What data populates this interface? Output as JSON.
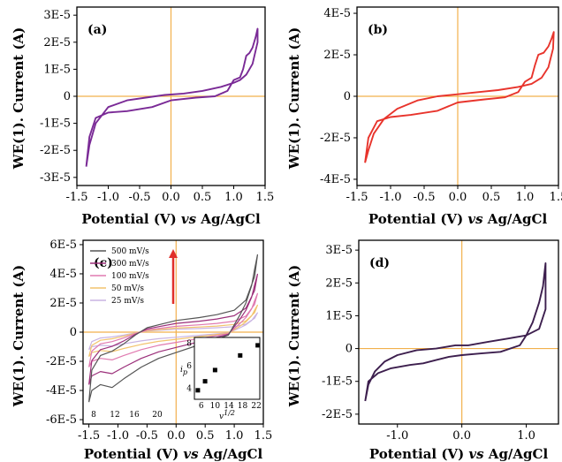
{
  "chart_data": [
    {
      "panel": "(a)",
      "type": "line",
      "xlabel": "Potential (V) vs Ag/AgCl",
      "ylabel": "WE(1). Current (A)",
      "xlim": [
        -1.5,
        1.5
      ],
      "ylim": [
        -3.3e-05,
        3.3e-05
      ],
      "xticks": [
        "-1.5",
        "-1.0",
        "-0.5",
        "0.0",
        "0.5",
        "1.0",
        "1.5"
      ],
      "yticks": [
        "-3E-5",
        "-2E-5",
        "-1E-5",
        "0",
        "1E-5",
        "2E-5",
        "3E-5"
      ],
      "color": "#7a2a96",
      "series": [
        {
          "x": [
            -1.35,
            -1.3,
            -1.2,
            -1.0,
            -0.7,
            -0.3,
            0.0,
            0.4,
            0.7,
            0.9,
            1.0,
            1.1,
            1.15,
            1.2,
            1.25,
            1.3,
            1.35,
            1.38,
            1.38,
            1.3,
            1.2,
            1.1,
            1.0,
            0.8,
            0.5,
            0.2,
            -0.1,
            -0.4,
            -0.7,
            -1.0,
            -1.2,
            -1.3,
            -1.35
          ],
          "y": [
            -2.6e-05,
            -1.5e-05,
            -8e-06,
            -6e-06,
            -5.5e-06,
            -4e-06,
            -1.5e-06,
            -5e-07,
            0.0,
            2e-06,
            6e-06,
            7e-06,
            1e-05,
            1.5e-05,
            1.6e-05,
            1.8e-05,
            2.2e-05,
            2.5e-05,
            2e-05,
            1.2e-05,
            8e-06,
            6e-06,
            5e-06,
            3.5e-06,
            2e-06,
            1e-06,
            5e-07,
            -5e-07,
            -1.5e-06,
            -4e-06,
            -1e-05,
            -1.8e-05,
            -2.6e-05
          ]
        }
      ]
    },
    {
      "panel": "(b)",
      "type": "line",
      "xlabel": "Potential (V) vs Ag/AgCl",
      "ylabel": "WE(1). Current (A)",
      "xlim": [
        -1.5,
        1.5
      ],
      "ylim": [
        -4.3e-05,
        4.3e-05
      ],
      "xticks": [
        "-1.5",
        "-1.0",
        "-0.5",
        "0.0",
        "0.5",
        "1.0",
        "1.5"
      ],
      "yticks": [
        "-4E-5",
        "-2E-5",
        "0",
        "2E-5",
        "4E-5"
      ],
      "color": "#e8342c",
      "series": [
        {
          "x": [
            -1.38,
            -1.33,
            -1.2,
            -1.0,
            -0.7,
            -0.3,
            0.0,
            0.4,
            0.7,
            0.9,
            1.0,
            1.1,
            1.15,
            1.2,
            1.28,
            1.35,
            1.4,
            1.43,
            1.42,
            1.35,
            1.25,
            1.1,
            0.9,
            0.6,
            0.3,
            0.0,
            -0.3,
            -0.6,
            -0.9,
            -1.1,
            -1.25,
            -1.33,
            -1.38
          ],
          "y": [
            -3.2e-05,
            -2e-05,
            -1.2e-05,
            -1e-05,
            -9e-06,
            -7e-06,
            -3e-06,
            -1.5e-06,
            -5e-07,
            2e-06,
            7e-06,
            9e-06,
            1.5e-05,
            2e-05,
            2.1e-05,
            2.4e-05,
            2.8e-05,
            3.1e-05,
            2.3e-05,
            1.4e-05,
            9e-06,
            6e-06,
            4.5e-06,
            3e-06,
            2e-06,
            1e-06,
            0.0,
            -2e-06,
            -6e-06,
            -1.1e-05,
            -1.8e-05,
            -2.6e-05,
            -3.2e-05
          ]
        }
      ]
    },
    {
      "panel": "(c)",
      "type": "line",
      "xlabel": "Potential (V) vs Ag/AgCl",
      "ylabel": "WE(1). Current (A)",
      "xlim": [
        -1.6,
        1.5
      ],
      "ylim": [
        -6.3e-05,
        6.3e-05
      ],
      "xticks": [
        "-1.5",
        "-1.0",
        "-0.5",
        "0.0",
        "0.5",
        "1.0",
        "1.5"
      ],
      "yticks": [
        "-6E-5",
        "-4E-5",
        "-2E-5",
        "0",
        "2E-5",
        "4E-5",
        "6E-5"
      ],
      "legend": [
        "500 mV/s",
        "300 mV/s",
        "100 mV/s",
        "50 mV/s",
        "25 mV/s"
      ],
      "series": [
        {
          "name": "500 mV/s",
          "color": "#555555",
          "scale": 1.0
        },
        {
          "name": "300 mV/s",
          "color": "#9b2f7a",
          "scale": 0.75
        },
        {
          "name": "100 mV/s",
          "color": "#e07ab0",
          "scale": 0.5
        },
        {
          "name": "50 mV/s",
          "color": "#f2c46e",
          "scale": 0.35
        },
        {
          "name": "25 mV/s",
          "color": "#c9b4e2",
          "scale": 0.25
        }
      ],
      "base_curve": {
        "x": [
          -1.5,
          -1.45,
          -1.3,
          -1.1,
          -0.9,
          -0.6,
          -0.3,
          0.0,
          0.3,
          0.6,
          0.9,
          1.0,
          1.1,
          1.2,
          1.3,
          1.35,
          1.4,
          1.35,
          1.2,
          1.0,
          0.7,
          0.4,
          0.0,
          -0.3,
          -0.5,
          -0.7,
          -0.9,
          -1.1,
          -1.3,
          -1.45,
          -1.5
        ],
        "y": [
          -4.8e-05,
          -4e-05,
          -3.6e-05,
          -3.8e-05,
          -3.2e-05,
          -2.4e-05,
          -1.8e-05,
          -1.4e-05,
          -1e-05,
          -6e-06,
          -2e-06,
          5e-06,
          1.2e-05,
          2e-05,
          3.2e-05,
          4.3e-05,
          5.3e-05,
          3.8e-05,
          2.2e-05,
          1.5e-05,
          1.2e-05,
          1e-05,
          8e-06,
          5e-06,
          3e-06,
          -2e-06,
          -8e-06,
          -1.3e-05,
          -1.6e-05,
          -2.6e-05,
          -4.8e-05
        ]
      },
      "inset": {
        "ylabel": "i_p",
        "xlabel": "v^1/2",
        "xticks": [
          "6",
          "10",
          "14",
          "18",
          "22"
        ],
        "yticks": [
          "4",
          "6",
          "8"
        ],
        "xlim": [
          4,
          23
        ],
        "ylim": [
          3,
          8.5
        ],
        "points": [
          [
            5.0,
            3.8
          ],
          [
            7.1,
            4.6
          ],
          [
            10.0,
            5.6
          ],
          [
            17.3,
            6.9
          ],
          [
            22.4,
            7.8
          ]
        ]
      },
      "annotations": [
        "8",
        "12",
        "16",
        "20"
      ]
    },
    {
      "panel": "(d)",
      "type": "line",
      "xlabel": "Potential (V) vs Ag/AgCl",
      "ylabel": "WE(1). Current (A)",
      "xlim": [
        -1.6,
        1.5
      ],
      "ylim": [
        -2.3e-05,
        3.3e-05
      ],
      "xticks": [
        "-1.0",
        "0.0",
        "1.0"
      ],
      "yticks": [
        "-2E-5",
        "-1E-5",
        "0",
        "1E-5",
        "2E-5",
        "3E-5"
      ],
      "color": "#3d1f4e",
      "series": [
        {
          "x": [
            -1.5,
            -1.45,
            -1.3,
            -1.1,
            -0.8,
            -0.6,
            -0.4,
            -0.2,
            0.0,
            0.3,
            0.6,
            0.9,
            1.0,
            1.1,
            1.2,
            1.26,
            1.3,
            1.3,
            1.2,
            1.0,
            0.7,
            0.4,
            0.1,
            -0.1,
            -0.4,
            -0.7,
            -1.0,
            -1.2,
            -1.35,
            -1.45,
            -1.5
          ],
          "y": [
            -1.6e-05,
            -1e-05,
            -7.5e-06,
            -6e-06,
            -5e-06,
            -4.5e-06,
            -3.5e-06,
            -2.5e-06,
            -2e-06,
            -1.5e-06,
            -1e-06,
            1e-06,
            4e-06,
            8e-06,
            1.4e-05,
            1.9e-05,
            2.6e-05,
            1.2e-05,
            6e-06,
            4e-06,
            3e-06,
            2e-06,
            1e-06,
            1e-06,
            0.0,
            -5e-07,
            -2e-06,
            -4e-06,
            -7e-06,
            -1.1e-05,
            -1.6e-05
          ]
        }
      ]
    }
  ]
}
